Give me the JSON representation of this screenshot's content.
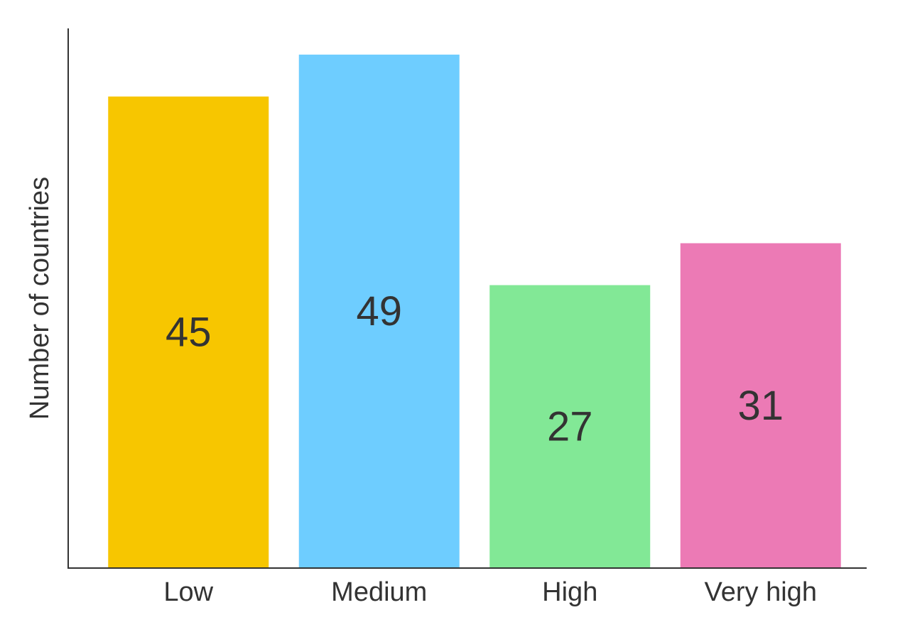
{
  "chart_data": {
    "type": "bar",
    "categories": [
      "Low",
      "Medium",
      "High",
      "Very high"
    ],
    "values": [
      45,
      49,
      27,
      31
    ],
    "colors": [
      "#F7C600",
      "#6ECDFF",
      "#82E896",
      "#EC7AB5"
    ],
    "title": "",
    "xlabel": "",
    "ylabel": "Number of countries",
    "ylim": [
      0,
      51.5
    ],
    "grid": false,
    "legend": "none"
  }
}
